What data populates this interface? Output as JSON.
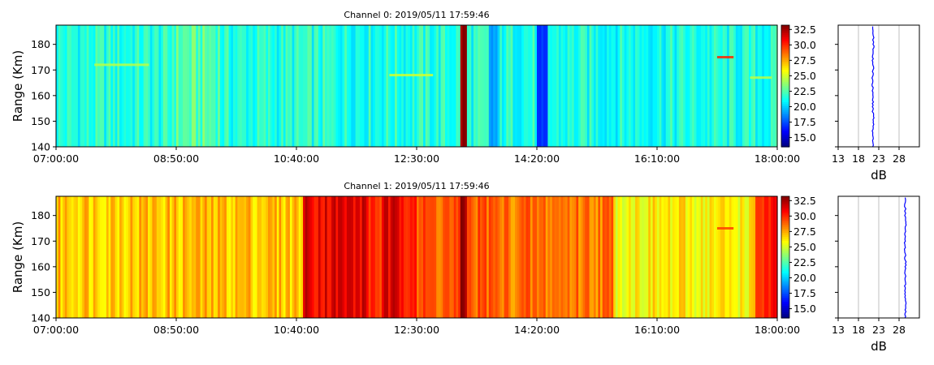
{
  "chart_data": [
    {
      "type": "heatmap",
      "title": "Channel 0: 2019/05/11 17:59:46",
      "ylabel": "Range (Km)",
      "xlabel": "",
      "x_tick_labels": [
        "07:00:00",
        "08:50:00",
        "10:40:00",
        "12:30:00",
        "14:20:00",
        "16:10:00",
        "18:00:00"
      ],
      "xlim": [
        "07:00:00",
        "18:00:00"
      ],
      "y_ticks": [
        140,
        150,
        160,
        170,
        180
      ],
      "ylim": [
        140,
        187.5
      ],
      "colormap": "jet",
      "clim": [
        13.5,
        33.2
      ],
      "colorbar_ticks": [
        "15.0",
        "17.5",
        "20.0",
        "22.5",
        "25.0",
        "27.5",
        "30.0",
        "32.5"
      ],
      "column_profile": {
        "time_step_minutes": 5,
        "base_level_db": 21.5,
        "bands": [
          {
            "start": "07:00:00",
            "end": "08:45:00",
            "db": 21.5
          },
          {
            "start": "08:45:00",
            "end": "09:30:00",
            "db": 22.5
          },
          {
            "start": "09:30:00",
            "end": "12:15:00",
            "db": 21.5
          },
          {
            "start": "13:10:00",
            "end": "13:15:00",
            "db": 33.0
          },
          {
            "start": "13:35:00",
            "end": "13:45:00",
            "db": 19.0
          },
          {
            "start": "14:20:00",
            "end": "14:30:00",
            "db": 16.0
          },
          {
            "start": "14:30:00",
            "end": "18:00:00",
            "db": 21.3
          }
        ],
        "horizontal_bands_km": [
          {
            "range_km": 172,
            "start": "07:35:00",
            "end": "08:25:00",
            "db": 24.5
          },
          {
            "range_km": 168,
            "start": "12:05:00",
            "end": "12:45:00",
            "db": 25.0
          },
          {
            "range_km": 175,
            "start": "17:05:00",
            "end": "17:20:00",
            "db": 30.0
          },
          {
            "range_km": 167,
            "start": "17:35:00",
            "end": "17:55:00",
            "db": 24.5
          }
        ]
      },
      "profile": {
        "xlabel": "dB",
        "x_ticks": [
          13,
          18,
          23,
          28
        ],
        "xlim": [
          13,
          33
        ],
        "series": [
          {
            "x": [
              21.6,
              21.5,
              21.7,
              21.5,
              21.6,
              21.4,
              21.6,
              21.5,
              21.7,
              21.5
            ],
            "y": [
              140,
              145,
              150,
              155,
              160,
              165,
              170,
              175,
              180,
              187
            ]
          }
        ],
        "line_color": "#0000ff",
        "grid": true
      }
    },
    {
      "type": "heatmap",
      "title": "Channel 1: 2019/05/11 17:59:46",
      "ylabel": "Range (Km)",
      "xlabel": "",
      "x_tick_labels": [
        "07:00:00",
        "08:50:00",
        "10:40:00",
        "12:30:00",
        "14:20:00",
        "16:10:00",
        "18:00:00"
      ],
      "xlim": [
        "07:00:00",
        "18:00:00"
      ],
      "y_ticks": [
        140,
        150,
        160,
        170,
        180
      ],
      "ylim": [
        140,
        187.5
      ],
      "colormap": "jet",
      "clim": [
        13.5,
        33.2
      ],
      "colorbar_ticks": [
        "15.0",
        "17.5",
        "20.0",
        "22.5",
        "25.0",
        "27.5",
        "30.0",
        "32.5"
      ],
      "column_profile": {
        "time_step_minutes": 5,
        "base_level_db": 27.0,
        "bands": [
          {
            "start": "07:00:00",
            "end": "10:45:00",
            "db": 27.0
          },
          {
            "start": "10:45:00",
            "end": "11:45:00",
            "db": 31.2
          },
          {
            "start": "11:45:00",
            "end": "12:00:00",
            "db": 30.0
          },
          {
            "start": "12:00:00",
            "end": "12:30:00",
            "db": 31.0
          },
          {
            "start": "12:30:00",
            "end": "13:40:00",
            "db": 29.0
          },
          {
            "start": "13:10:00",
            "end": "13:15:00",
            "db": 33.0
          },
          {
            "start": "13:40:00",
            "end": "15:30:00",
            "db": 28.5
          },
          {
            "start": "15:30:00",
            "end": "17:40:00",
            "db": 26.0
          },
          {
            "start": "17:40:00",
            "end": "18:00:00",
            "db": 30.0
          }
        ],
        "horizontal_bands_km": [
          {
            "range_km": 175,
            "start": "17:05:00",
            "end": "17:20:00",
            "db": 29.5
          }
        ]
      },
      "profile": {
        "xlabel": "dB",
        "x_ticks": [
          13,
          18,
          23,
          28
        ],
        "xlim": [
          13,
          33
        ],
        "series": [
          {
            "x": [
              29.5,
              29.6,
              29.4,
              29.5,
              29.6,
              29.5,
              29.4,
              29.6,
              29.5,
              29.5
            ],
            "y": [
              140,
              145,
              150,
              155,
              160,
              165,
              170,
              175,
              180,
              187
            ]
          }
        ],
        "line_color": "#0000ff",
        "grid": true
      }
    }
  ]
}
